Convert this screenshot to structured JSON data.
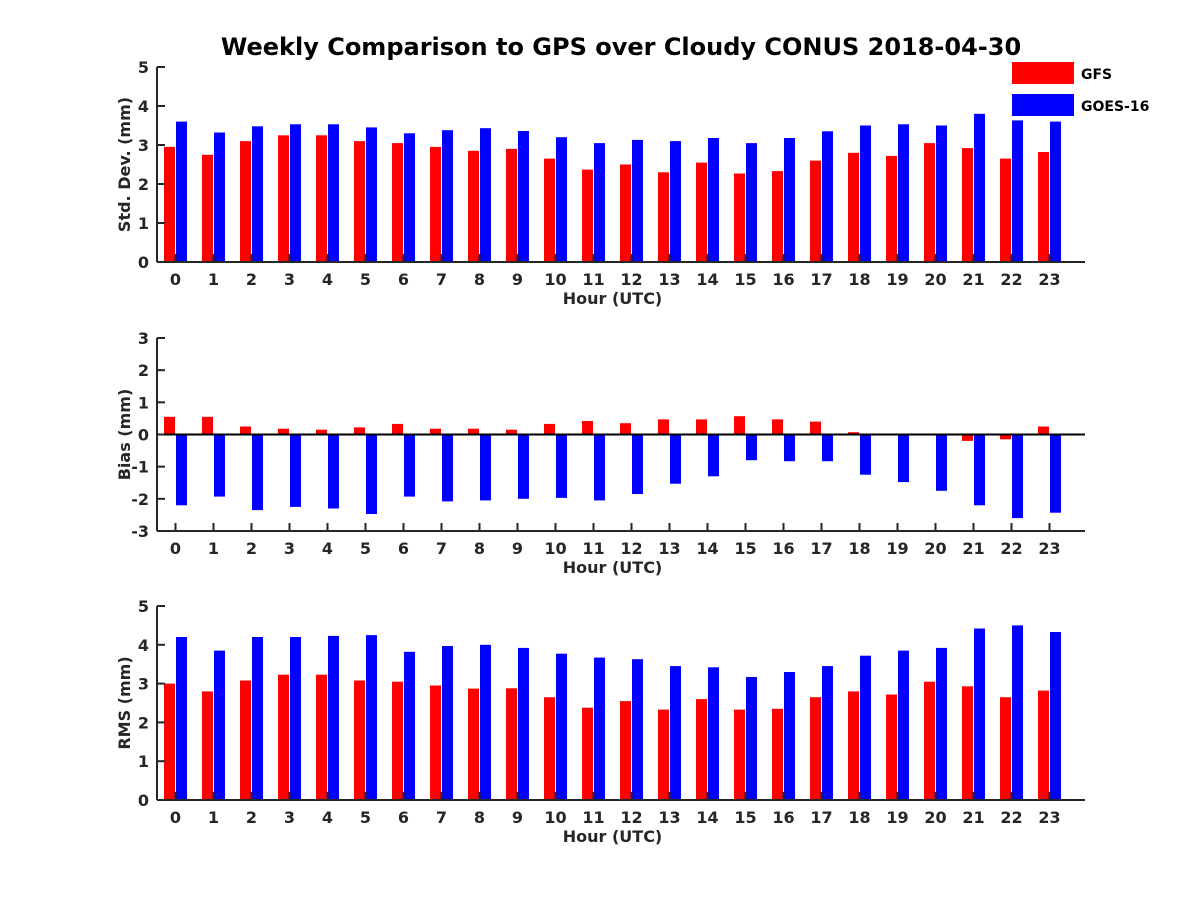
{
  "chart_data": {
    "title": "Weekly Comparison to GPS over Cloudy CONUS 2018-04-30",
    "legend": [
      {
        "name": "GFS",
        "color": "#ff0000"
      },
      {
        "name": "GOES-16",
        "color": "#0000ff"
      }
    ],
    "legend_placement": "top-right",
    "grid": false,
    "panels": [
      {
        "type": "bar",
        "ylabel": "Std. Dev. (mm)",
        "xlabel": "Hour (UTC)",
        "ylim": [
          0,
          5
        ],
        "yticks": [
          0,
          1,
          2,
          3,
          4,
          5
        ],
        "categories": [
          "0",
          "1",
          "2",
          "3",
          "4",
          "5",
          "6",
          "7",
          "8",
          "9",
          "10",
          "11",
          "12",
          "13",
          "14",
          "15",
          "16",
          "17",
          "18",
          "19",
          "20",
          "21",
          "22",
          "23"
        ],
        "series": [
          {
            "name": "GFS",
            "values": [
              2.95,
              2.75,
              3.1,
              3.25,
              3.25,
              3.1,
              3.05,
              2.95,
              2.85,
              2.9,
              2.65,
              2.37,
              2.5,
              2.3,
              2.55,
              2.27,
              2.33,
              2.6,
              2.8,
              2.72,
              3.05,
              2.92,
              2.65,
              2.82
            ]
          },
          {
            "name": "GOES-16",
            "values": [
              3.6,
              3.32,
              3.48,
              3.53,
              3.53,
              3.45,
              3.3,
              3.38,
              3.43,
              3.36,
              3.2,
              3.05,
              3.13,
              3.1,
              3.18,
              3.05,
              3.18,
              3.35,
              3.5,
              3.53,
              3.5,
              3.8,
              3.63,
              3.6
            ]
          }
        ]
      },
      {
        "type": "bar",
        "ylabel": "Bias (mm)",
        "xlabel": "Hour (UTC)",
        "ylim": [
          -3,
          3
        ],
        "yticks": [
          -3,
          -2,
          -1,
          0,
          1,
          2,
          3
        ],
        "categories": [
          "0",
          "1",
          "2",
          "3",
          "4",
          "5",
          "6",
          "7",
          "8",
          "9",
          "10",
          "11",
          "12",
          "13",
          "14",
          "15",
          "16",
          "17",
          "18",
          "19",
          "20",
          "21",
          "22",
          "23"
        ],
        "series": [
          {
            "name": "GFS",
            "values": [
              0.55,
              0.55,
              0.25,
              0.18,
              0.15,
              0.22,
              0.33,
              0.18,
              0.18,
              0.15,
              0.33,
              0.42,
              0.35,
              0.47,
              0.47,
              0.57,
              0.47,
              0.4,
              0.07,
              0.0,
              0.03,
              -0.2,
              -0.15,
              0.25
            ]
          },
          {
            "name": "GOES-16",
            "values": [
              -2.2,
              -1.93,
              -2.35,
              -2.25,
              -2.3,
              -2.47,
              -1.93,
              -2.08,
              -2.05,
              -2.0,
              -1.97,
              -2.05,
              -1.85,
              -1.53,
              -1.3,
              -0.8,
              -0.83,
              -0.83,
              -1.25,
              -1.48,
              -1.75,
              -2.2,
              -2.6,
              -2.43
            ]
          }
        ]
      },
      {
        "type": "bar",
        "ylabel": "RMS (mm)",
        "xlabel": "Hour (UTC)",
        "ylim": [
          0,
          5
        ],
        "yticks": [
          0,
          1,
          2,
          3,
          4,
          5
        ],
        "categories": [
          "0",
          "1",
          "2",
          "3",
          "4",
          "5",
          "6",
          "7",
          "8",
          "9",
          "10",
          "11",
          "12",
          "13",
          "14",
          "15",
          "16",
          "17",
          "18",
          "19",
          "20",
          "21",
          "22",
          "23"
        ],
        "series": [
          {
            "name": "GFS",
            "values": [
              3.0,
              2.8,
              3.08,
              3.23,
              3.23,
              3.08,
              3.05,
              2.95,
              2.87,
              2.88,
              2.65,
              2.38,
              2.55,
              2.33,
              2.6,
              2.33,
              2.35,
              2.65,
              2.8,
              2.72,
              3.05,
              2.93,
              2.65,
              2.82
            ]
          },
          {
            "name": "GOES-16",
            "values": [
              4.2,
              3.85,
              4.2,
              4.2,
              4.23,
              4.25,
              3.82,
              3.97,
              4.0,
              3.92,
              3.77,
              3.67,
              3.63,
              3.45,
              3.42,
              3.17,
              3.3,
              3.45,
              3.72,
              3.85,
              3.92,
              4.42,
              4.5,
              4.33
            ]
          }
        ]
      }
    ]
  }
}
